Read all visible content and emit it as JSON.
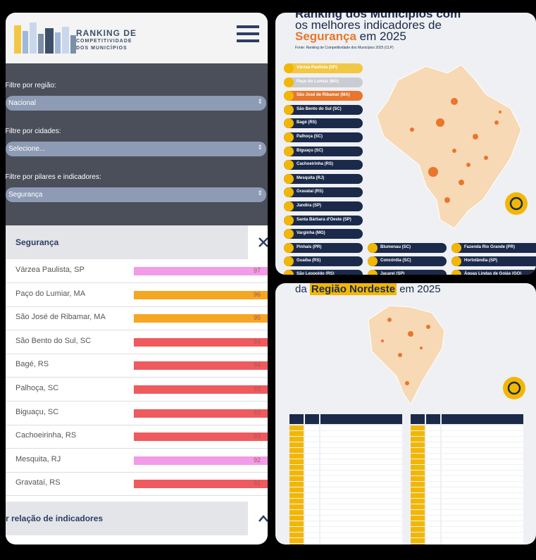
{
  "left": {
    "logo": [
      "RANKING DE",
      "COMPETITIVIDADE",
      "DOS MUNICÍPIOS"
    ],
    "filters": [
      {
        "label": "Filtre por região:",
        "value": "Nacional"
      },
      {
        "label": "Filtre por cidades:",
        "value": "Selecione..."
      },
      {
        "label": "Filtre por pilares e indicadores:",
        "value": "Segurança"
      }
    ],
    "panel_title": "Segurança",
    "rows": [
      {
        "name": "Várzea Paulista, SP",
        "score": 97,
        "color": "#f29be8"
      },
      {
        "name": "Paço do Lumiar, MA",
        "score": 96,
        "color": "#f5a623"
      },
      {
        "name": "São José de Ribamar, MA",
        "score": 95,
        "color": "#f5a623"
      },
      {
        "name": "São Bento do Sul, SC",
        "score": 94,
        "color": "#ef5a5f"
      },
      {
        "name": "Bagé, RS",
        "score": 94,
        "color": "#ef5a5f"
      },
      {
        "name": "Palhoça, SC",
        "score": 93,
        "color": "#ef5a5f"
      },
      {
        "name": "Biguaçu, SC",
        "score": 93,
        "color": "#ef5a5f"
      },
      {
        "name": "Cachoeirinha, RS",
        "score": 93,
        "color": "#ef5a5f"
      },
      {
        "name": "Mesquita, RJ",
        "score": 92,
        "color": "#f29be8"
      },
      {
        "name": "Gravataí, RS",
        "score": 91,
        "color": "#ef5a5f"
      }
    ],
    "footer": "r relação de indicadores"
  },
  "top_right": {
    "title_lines": [
      "Ranking dos Municípios com",
      "os melhores indicadores de"
    ],
    "title_highlight": "Segurança",
    "title_end": "em 2025",
    "source": "Fonte: Ranking de Competitividade dos Municípios 2025 (CLP)",
    "ranking": [
      "Várzea Paulista (SP)",
      "Paço do Lumiar (MA)",
      "São José de Ribamar (MA)",
      "São Bento do Sul (SC)",
      "Bagé (RS)",
      "Palhoça (SC)",
      "Biguaçu (SC)",
      "Cachoeirinha (RS)",
      "Mesquita (RJ)",
      "Gravataí (RS)",
      "Jandira (SP)",
      "Santa Bárbara d'Oeste (SP)",
      "Varginha (MG)",
      "Pinhais (PR)",
      "Blumenau (SC)",
      "Fazenda Rio Grande (PR)",
      "Guaíba (RS)",
      "Concórdia (SC)",
      "Hortolândia (SP)",
      "São Leopoldo (RS)",
      "Jacareí (SP)",
      "Águas Lindas de Goiás (GO)"
    ]
  },
  "bottom_right": {
    "title_start": "da",
    "title_highlight": "Região Nordeste",
    "title_end": "em 2025"
  }
}
